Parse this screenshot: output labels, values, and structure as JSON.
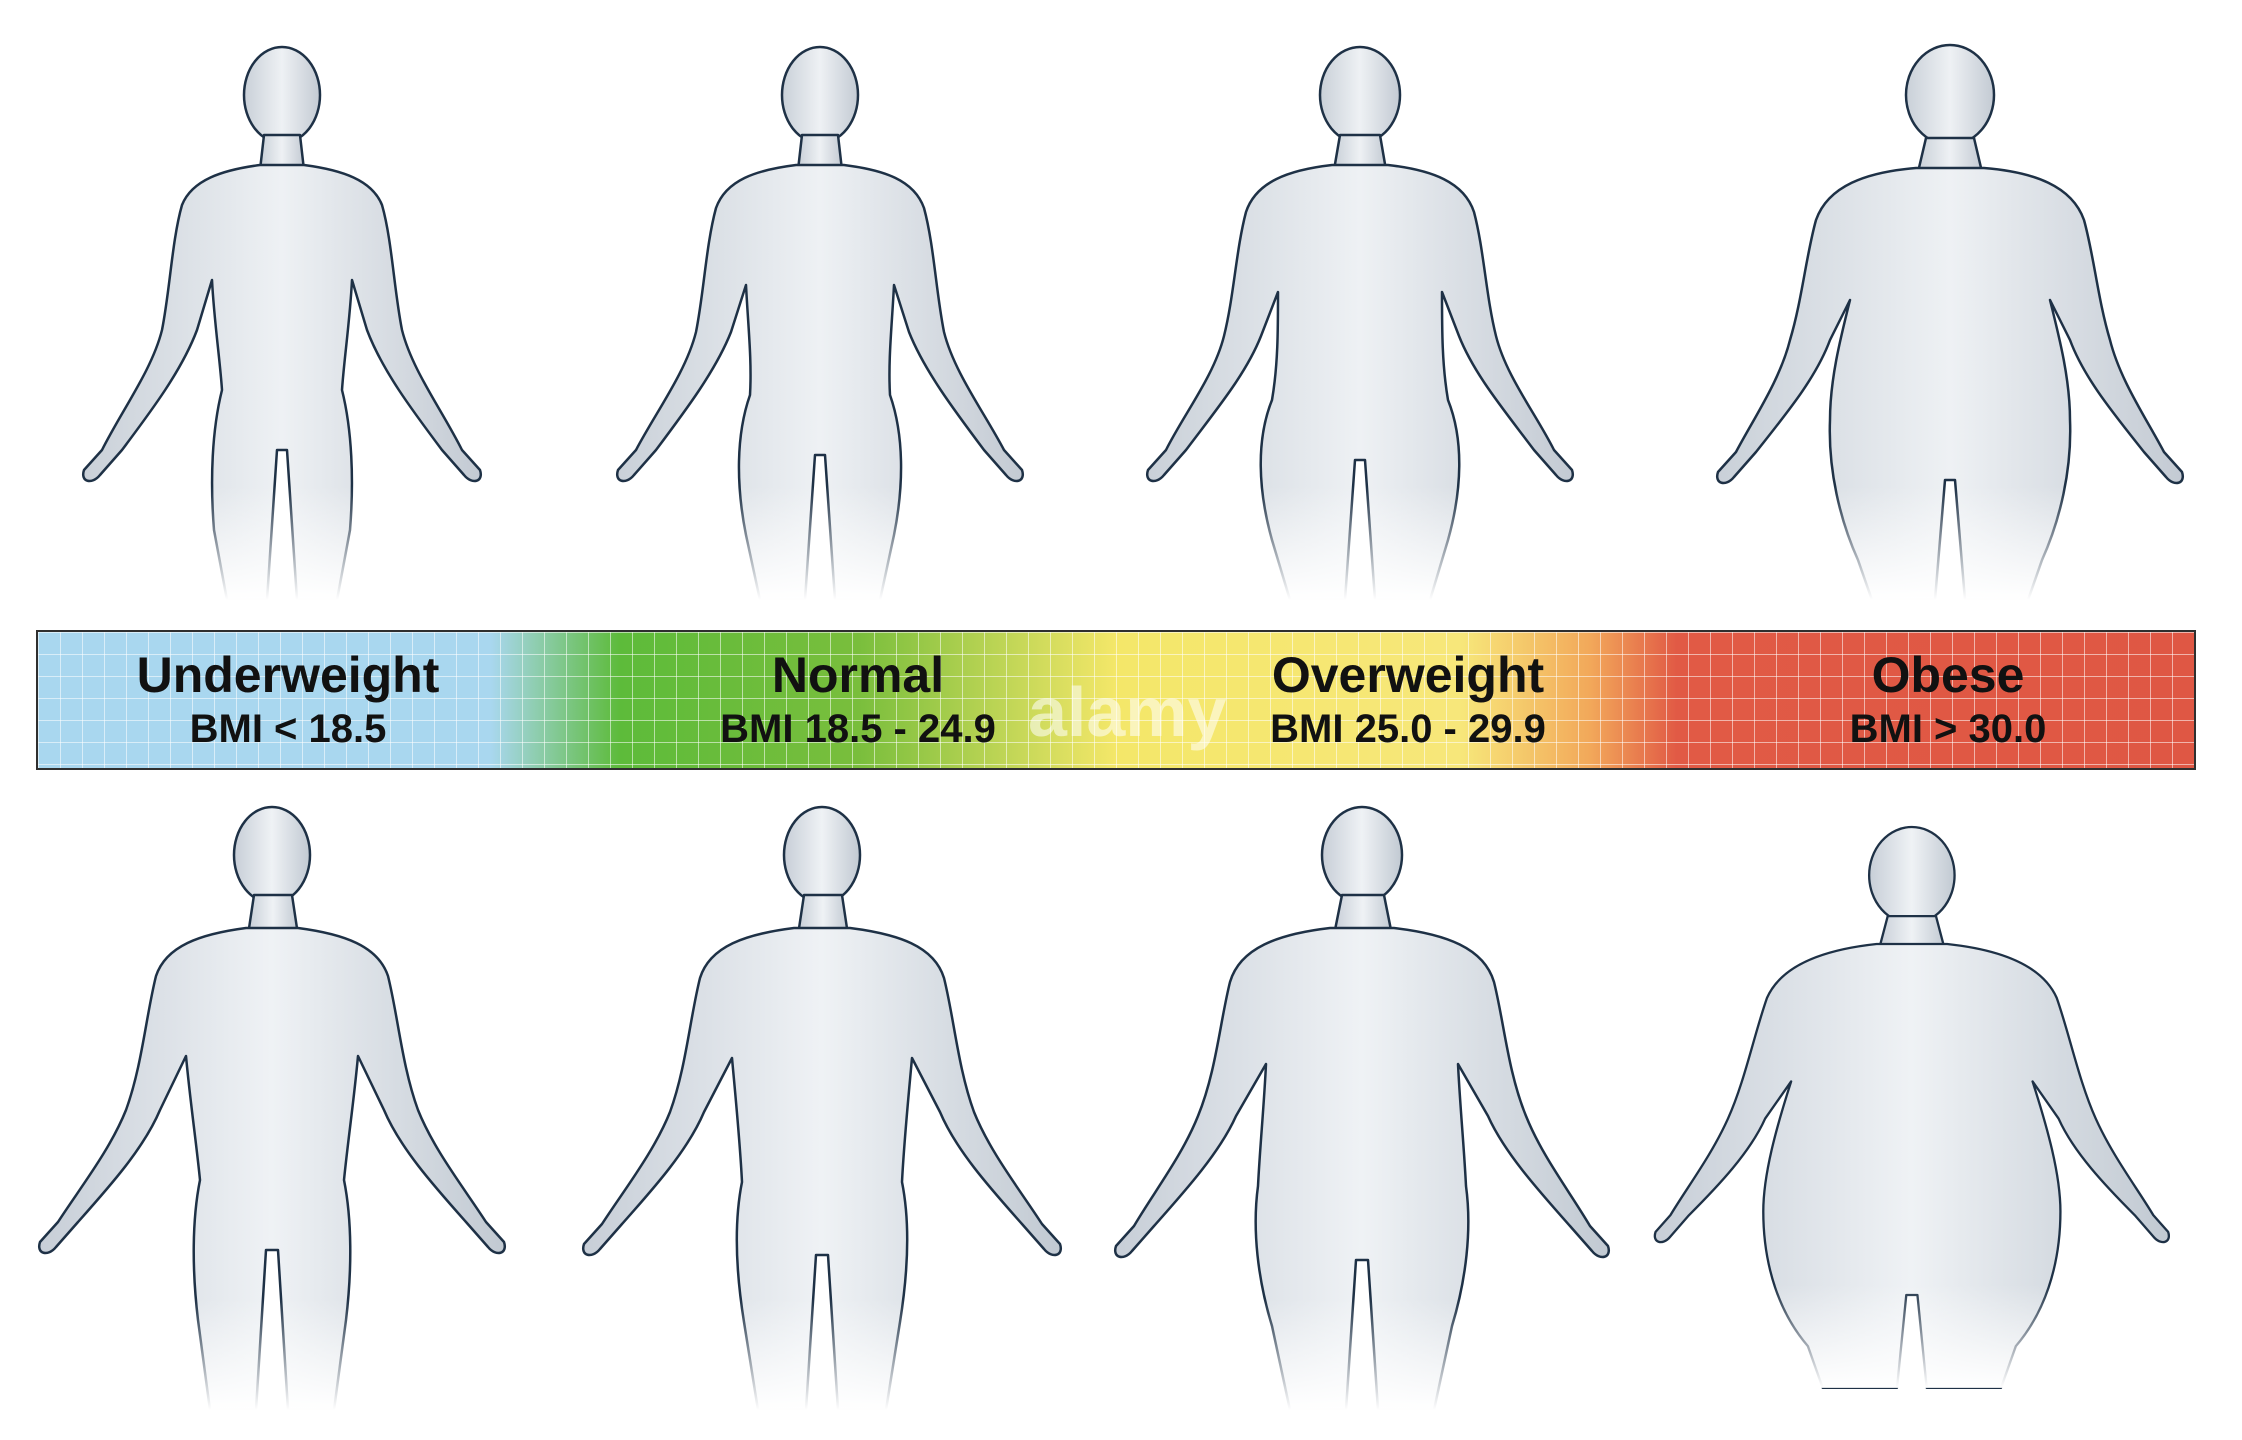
{
  "bmi_scale": [
    {
      "category": "Underweight",
      "range": "BMI < 18.5"
    },
    {
      "category": "Normal",
      "range": "BMI 18.5 - 24.9"
    },
    {
      "category": "Overweight",
      "range": "BMI 25.0 - 29.9"
    },
    {
      "category": "Obese",
      "range": "BMI > 30.0"
    }
  ],
  "rows": [
    {
      "figures": [
        "underweight-female",
        "normal-female",
        "overweight-female",
        "obese-female"
      ]
    },
    {
      "figures": [
        "underweight-male",
        "normal-male",
        "overweight-male",
        "obese-male"
      ]
    }
  ],
  "watermark": "alamy",
  "colors": {
    "underweight": "#a9d7ef",
    "normal": "#6cbd3b",
    "overweight": "#f4e769",
    "obese": "#df5744",
    "figure_fill": "#e3e7ec",
    "figure_outline": "#1e3146"
  }
}
